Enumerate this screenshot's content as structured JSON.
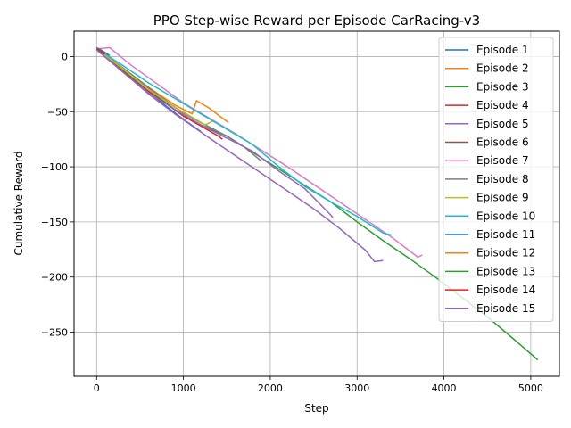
{
  "chart_data": {
    "type": "line",
    "title": "PPO Step-wise Reward per Episode CarRacing-v3",
    "xlabel": "Step",
    "ylabel": "Cumulative Reward",
    "xlim": [
      -260,
      5330
    ],
    "ylim": [
      -290,
      23
    ],
    "xticks": [
      0,
      1000,
      2000,
      3000,
      4000,
      5000
    ],
    "yticks": [
      0,
      -50,
      -100,
      -150,
      -200,
      -250
    ],
    "xtick_labels": [
      "0",
      "1000",
      "2000",
      "3000",
      "4000",
      "5000"
    ],
    "ytick_labels": [
      "0",
      "−50",
      "−100",
      "−150",
      "−200",
      "−250"
    ],
    "grid": true,
    "legend_position": "top-right",
    "series": [
      {
        "name": "Episode 1",
        "color": "#1f77b4",
        "points": [
          [
            0,
            7
          ],
          [
            200,
            -6
          ],
          [
            400,
            -19
          ],
          [
            600,
            -32
          ],
          [
            800,
            -45
          ],
          [
            1000,
            -57
          ],
          [
            1200,
            -68
          ]
        ]
      },
      {
        "name": "Episode 2",
        "color": "#ff7f0e",
        "points": [
          [
            0,
            7
          ],
          [
            300,
            -12
          ],
          [
            600,
            -28
          ],
          [
            900,
            -44
          ],
          [
            1100,
            -52
          ],
          [
            1150,
            -40
          ],
          [
            1300,
            -47
          ],
          [
            1400,
            -53
          ],
          [
            1520,
            -60
          ]
        ]
      },
      {
        "name": "Episode 3",
        "color": "#2ca02c",
        "points": [
          [
            0,
            7
          ],
          [
            300,
            -12
          ],
          [
            600,
            -30
          ],
          [
            900,
            -48
          ],
          [
            1200,
            -62
          ],
          [
            1500,
            -72
          ],
          [
            1800,
            -87
          ],
          [
            2100,
            -102
          ],
          [
            2400,
            -117
          ],
          [
            2700,
            -132
          ],
          [
            3000,
            -150
          ],
          [
            3300,
            -167
          ],
          [
            3600,
            -183
          ],
          [
            3900,
            -200
          ],
          [
            4200,
            -218
          ],
          [
            4500,
            -236
          ],
          [
            4800,
            -256
          ],
          [
            5080,
            -275
          ]
        ]
      },
      {
        "name": "Episode 4",
        "color": "#d62728",
        "points": [
          [
            0,
            7
          ],
          [
            250,
            -10
          ],
          [
            500,
            -26
          ],
          [
            750,
            -40
          ],
          [
            1000,
            -54
          ],
          [
            1200,
            -63
          ],
          [
            1400,
            -72
          ],
          [
            1450,
            -75
          ]
        ]
      },
      {
        "name": "Episode 5",
        "color": "#9467bd",
        "points": [
          [
            0,
            7
          ],
          [
            300,
            -14
          ],
          [
            600,
            -34
          ],
          [
            900,
            -52
          ],
          [
            1100,
            -63
          ],
          [
            1300,
            -74
          ],
          [
            1600,
            -90
          ],
          [
            1900,
            -106
          ],
          [
            2200,
            -122
          ],
          [
            2500,
            -138
          ],
          [
            2800,
            -156
          ],
          [
            3100,
            -176
          ],
          [
            3200,
            -186
          ],
          [
            3300,
            -185
          ]
        ]
      },
      {
        "name": "Episode 6",
        "color": "#8c564b",
        "points": [
          [
            0,
            7
          ],
          [
            250,
            -8
          ],
          [
            500,
            -23
          ],
          [
            750,
            -38
          ],
          [
            1000,
            -51
          ],
          [
            1200,
            -60
          ],
          [
            1350,
            -66
          ]
        ]
      },
      {
        "name": "Episode 7",
        "color": "#e377c2",
        "points": [
          [
            0,
            7
          ],
          [
            150,
            8
          ],
          [
            400,
            -8
          ],
          [
            700,
            -25
          ],
          [
            1000,
            -42
          ],
          [
            1300,
            -56
          ],
          [
            1600,
            -70
          ],
          [
            1900,
            -85
          ],
          [
            2200,
            -100
          ],
          [
            2500,
            -116
          ],
          [
            2800,
            -132
          ],
          [
            3100,
            -148
          ],
          [
            3400,
            -164
          ],
          [
            3700,
            -182
          ],
          [
            3750,
            -180
          ]
        ]
      },
      {
        "name": "Episode 8",
        "color": "#7f7f7f",
        "points": [
          [
            0,
            7
          ],
          [
            300,
            -10
          ],
          [
            600,
            -28
          ],
          [
            900,
            -46
          ],
          [
            1200,
            -60
          ],
          [
            1500,
            -72
          ],
          [
            1700,
            -82
          ],
          [
            1900,
            -95
          ]
        ]
      },
      {
        "name": "Episode 9",
        "color": "#bcbd22",
        "points": [
          [
            0,
            7
          ],
          [
            300,
            -11
          ],
          [
            600,
            -30
          ],
          [
            900,
            -46
          ],
          [
            1100,
            -55
          ],
          [
            1250,
            -62
          ],
          [
            1350,
            -58
          ]
        ]
      },
      {
        "name": "Episode 10",
        "color": "#17becf",
        "points": [
          [
            0,
            7
          ],
          [
            300,
            -8
          ],
          [
            600,
            -24
          ],
          [
            900,
            -38
          ],
          [
            1200,
            -52
          ],
          [
            1500,
            -66
          ],
          [
            1800,
            -80
          ],
          [
            2100,
            -100
          ],
          [
            2400,
            -118
          ],
          [
            2700,
            -132
          ],
          [
            3000,
            -145
          ],
          [
            3300,
            -160
          ],
          [
            3400,
            -162
          ]
        ]
      },
      {
        "name": "Episode 11",
        "color": "#1f77b4",
        "points": [
          [
            0,
            8
          ],
          [
            50,
            6
          ],
          [
            150,
            1
          ]
        ]
      },
      {
        "name": "Episode 12",
        "color": "#ff7f0e",
        "points": [
          [
            0,
            7
          ],
          [
            40,
            5
          ],
          [
            100,
            2
          ]
        ]
      },
      {
        "name": "Episode 13",
        "color": "#2ca02c",
        "points": [
          [
            0,
            7
          ],
          [
            30,
            6
          ],
          [
            80,
            3
          ]
        ]
      },
      {
        "name": "Episode 14",
        "color": "#d62728",
        "points": [
          [
            0,
            7
          ],
          [
            40,
            5
          ],
          [
            90,
            2
          ]
        ]
      },
      {
        "name": "Episode 15",
        "color": "#9467bd",
        "points": [
          [
            0,
            6
          ],
          [
            300,
            -14
          ],
          [
            600,
            -33
          ],
          [
            900,
            -48
          ],
          [
            1200,
            -62
          ],
          [
            1500,
            -74
          ],
          [
            1800,
            -86
          ],
          [
            2100,
            -104
          ],
          [
            2400,
            -120
          ],
          [
            2700,
            -144
          ],
          [
            2720,
            -146
          ]
        ]
      }
    ]
  }
}
